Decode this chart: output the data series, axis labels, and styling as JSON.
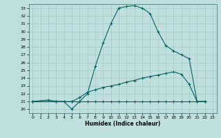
{
  "xlabel": "Humidex (Indice chaleur)",
  "bg_color": "#c0e0e0",
  "line_color": "#006060",
  "grid_color": "#a0c8c8",
  "xlim": [
    -0.5,
    23.5
  ],
  "ylim": [
    19.5,
    33.5
  ],
  "xticks": [
    0,
    1,
    2,
    3,
    4,
    5,
    6,
    7,
    8,
    9,
    10,
    11,
    12,
    13,
    14,
    15,
    16,
    17,
    18,
    19,
    20,
    21,
    22,
    23
  ],
  "yticks": [
    20,
    21,
    22,
    23,
    24,
    25,
    26,
    27,
    28,
    29,
    30,
    31,
    32,
    33
  ],
  "line1_x": [
    0,
    2,
    3,
    4,
    5,
    6,
    7,
    8,
    9,
    10,
    11,
    12,
    13,
    14,
    15,
    16,
    17,
    18,
    19,
    20,
    21,
    22
  ],
  "line1_y": [
    21,
    21.2,
    21,
    21,
    20,
    21,
    22,
    25.5,
    28.5,
    31,
    33,
    33.2,
    33.3,
    33,
    32.3,
    30,
    28.2,
    27.5,
    27,
    26.5,
    21,
    21
  ],
  "line2_x": [
    0,
    3,
    5,
    6,
    7,
    8,
    9,
    10,
    11,
    12,
    13,
    14,
    15,
    16,
    17,
    18,
    19,
    20,
    21,
    22
  ],
  "line2_y": [
    21,
    21,
    21,
    21.5,
    22.2,
    22.5,
    22.8,
    23,
    23.2,
    23.5,
    23.7,
    24,
    24.2,
    24.4,
    24.6,
    24.8,
    24.5,
    23.2,
    21,
    21
  ],
  "line3_x": [
    0,
    3,
    5,
    6,
    7,
    8,
    9,
    10,
    11,
    12,
    13,
    14,
    15,
    16,
    17,
    18,
    19,
    20,
    21,
    22
  ],
  "line3_y": [
    21,
    21,
    21,
    21,
    21,
    21,
    21,
    21,
    21,
    21,
    21,
    21,
    21,
    21,
    21,
    21,
    21,
    21,
    21,
    21
  ]
}
